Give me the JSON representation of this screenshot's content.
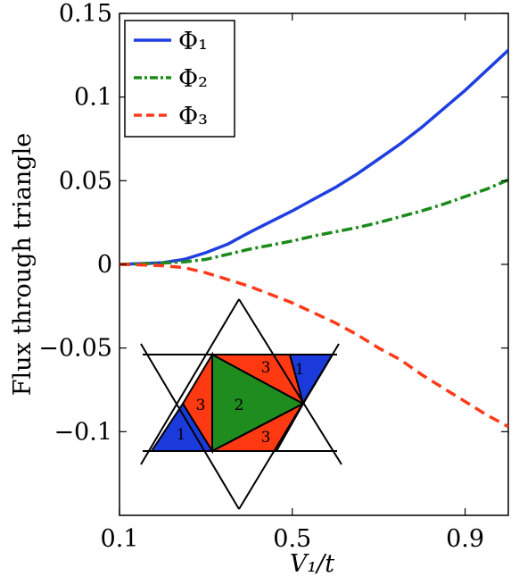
{
  "chart_data": {
    "type": "line",
    "title": "",
    "xlabel": "V₁/t",
    "ylabel": "Flux through triangle",
    "xlim": [
      0.1,
      1.0
    ],
    "ylim": [
      -0.15,
      0.15
    ],
    "x_ticks": [
      0.1,
      0.5,
      0.9
    ],
    "x_tick_labels": [
      "0.1",
      "0.5",
      "0.9"
    ],
    "y_ticks": [
      0.15,
      0.1,
      0.05,
      0,
      -0.05,
      -0.1
    ],
    "y_tick_labels": [
      "0.15",
      "0.1",
      "0.05",
      "0",
      "−0.05",
      "−0.1"
    ],
    "grid": false,
    "legend_position": "top-left",
    "series": [
      {
        "name": "Φ₁",
        "color": "#1f3fe0",
        "style": "solid",
        "x": [
          0.1,
          0.15,
          0.2,
          0.25,
          0.3,
          0.35,
          0.4,
          0.45,
          0.5,
          0.55,
          0.6,
          0.65,
          0.7,
          0.75,
          0.8,
          0.85,
          0.9,
          0.95,
          1.0
        ],
        "y": [
          0.0,
          0.0005,
          0.001,
          0.003,
          0.007,
          0.012,
          0.019,
          0.0255,
          0.032,
          0.039,
          0.046,
          0.054,
          0.063,
          0.072,
          0.082,
          0.093,
          0.104,
          0.116,
          0.128
        ]
      },
      {
        "name": "Φ₂",
        "color": "#1a8a1a",
        "style": "dashdot",
        "x": [
          0.1,
          0.15,
          0.2,
          0.25,
          0.3,
          0.35,
          0.4,
          0.45,
          0.5,
          0.55,
          0.6,
          0.65,
          0.7,
          0.75,
          0.8,
          0.85,
          0.9,
          0.95,
          1.0
        ],
        "y": [
          0.0,
          0.0003,
          0.0008,
          0.0015,
          0.003,
          0.006,
          0.009,
          0.0115,
          0.014,
          0.017,
          0.0195,
          0.022,
          0.025,
          0.0285,
          0.032,
          0.036,
          0.0405,
          0.045,
          0.0505
        ]
      },
      {
        "name": "Φ₃",
        "color": "#ff3a1a",
        "style": "dashed",
        "x": [
          0.1,
          0.15,
          0.2,
          0.25,
          0.3,
          0.35,
          0.4,
          0.45,
          0.5,
          0.55,
          0.6,
          0.65,
          0.7,
          0.75,
          0.8,
          0.85,
          0.9,
          0.95,
          1.0
        ],
        "y": [
          0.0,
          -0.0003,
          -0.0008,
          -0.002,
          -0.005,
          -0.009,
          -0.013,
          -0.018,
          -0.023,
          -0.029,
          -0.035,
          -0.042,
          -0.05,
          -0.057,
          -0.066,
          -0.074,
          -0.082,
          -0.09,
          -0.097
        ]
      }
    ],
    "inset": {
      "triangle_labels": [
        "1",
        "1",
        "2",
        "3",
        "3",
        "3",
        "3"
      ],
      "colors": {
        "one": "#1a3adc",
        "two": "#1e8c1e",
        "three": "#ff3a12"
      }
    }
  }
}
